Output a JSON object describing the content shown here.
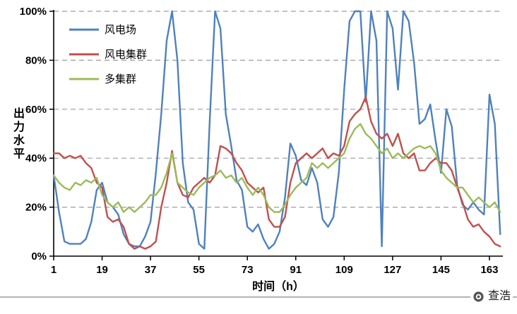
{
  "colors": {
    "background": "#ffffff",
    "axis": "#000000",
    "gridline": "#9e9e9e",
    "divider": "#b3b3b3",
    "wind_farm_blue": "#4F81BD",
    "wind_cluster_red": "#C0504D",
    "multi_cluster_green": "#9BBB59"
  },
  "watermark": {
    "text": "查浩"
  },
  "chart_data": {
    "type": "line",
    "title": "",
    "xlabel": "时间（h）",
    "ylabel": "出力水平",
    "xlim": [
      1,
      168
    ],
    "ylim": [
      0,
      100
    ],
    "xticks": [
      1,
      19,
      37,
      55,
      73,
      91,
      109,
      127,
      145,
      163
    ],
    "yticks": [
      0,
      20,
      40,
      60,
      80,
      100
    ],
    "ytick_labels": [
      "0%",
      "20%",
      "40%",
      "60%",
      "80%",
      "100%"
    ],
    "grid": "horizontal-dashed",
    "legend_position": "top-left-inside",
    "x": [
      1,
      3,
      5,
      7,
      9,
      11,
      13,
      15,
      17,
      19,
      21,
      23,
      25,
      27,
      29,
      31,
      33,
      35,
      37,
      39,
      41,
      43,
      45,
      47,
      49,
      51,
      53,
      55,
      57,
      59,
      61,
      63,
      65,
      67,
      69,
      71,
      73,
      75,
      77,
      79,
      81,
      83,
      85,
      87,
      89,
      91,
      93,
      95,
      97,
      99,
      101,
      103,
      105,
      107,
      109,
      111,
      113,
      115,
      117,
      119,
      121,
      123,
      125,
      127,
      129,
      131,
      133,
      135,
      137,
      139,
      141,
      143,
      145,
      147,
      149,
      151,
      153,
      155,
      157,
      159,
      161,
      163,
      165,
      167
    ],
    "series": [
      {
        "name": "风电场",
        "color": "#4F81BD",
        "values": [
          33,
          18,
          6,
          5,
          5,
          5,
          7,
          14,
          27,
          30,
          22,
          20,
          17,
          9,
          5,
          4,
          4,
          8,
          14,
          34,
          58,
          88,
          100,
          80,
          38,
          22,
          19,
          5,
          3,
          55,
          100,
          93,
          58,
          45,
          31,
          27,
          12,
          10,
          13,
          7,
          3,
          5,
          10,
          24,
          46,
          41,
          31,
          29,
          36,
          30,
          15,
          12,
          16,
          34,
          68,
          96,
          100,
          100,
          63,
          100,
          88,
          4,
          100,
          93,
          68,
          100,
          96,
          79,
          54,
          56,
          62,
          47,
          34,
          60,
          53,
          29,
          21,
          19,
          22,
          19,
          17,
          66,
          54,
          9
        ]
      },
      {
        "name": "风电集群",
        "color": "#C0504D",
        "values": [
          42,
          42,
          40,
          41,
          40,
          41,
          38,
          36,
          30,
          28,
          16,
          14,
          15,
          12,
          5,
          3,
          4,
          3,
          4,
          6,
          20,
          30,
          43,
          30,
          25,
          24,
          28,
          30,
          32,
          30,
          33,
          45,
          44,
          42,
          38,
          35,
          30,
          28,
          26,
          28,
          15,
          12,
          12,
          16,
          30,
          38,
          40,
          42,
          40,
          42,
          44,
          40,
          42,
          41,
          45,
          55,
          58,
          60,
          65,
          55,
          50,
          48,
          50,
          45,
          50,
          42,
          40,
          42,
          35,
          35,
          38,
          40,
          38,
          38,
          35,
          28,
          22,
          15,
          12,
          13,
          10,
          8,
          5,
          4
        ]
      },
      {
        "name": "多集群",
        "color": "#9BBB59",
        "values": [
          33,
          30,
          28,
          27,
          30,
          29,
          31,
          30,
          32,
          25,
          22,
          20,
          22,
          18,
          20,
          18,
          20,
          22,
          25,
          25,
          28,
          34,
          42,
          30,
          28,
          26,
          25,
          28,
          30,
          32,
          33,
          35,
          32,
          33,
          30,
          32,
          28,
          25,
          28,
          25,
          20,
          18,
          18,
          21,
          25,
          28,
          30,
          32,
          38,
          36,
          38,
          36,
          38,
          40,
          42,
          48,
          52,
          54,
          50,
          48,
          45,
          42,
          44,
          40,
          42,
          40,
          42,
          44,
          45,
          44,
          45,
          42,
          35,
          32,
          30,
          28,
          28,
          25,
          22,
          24,
          22,
          20,
          22,
          18
        ]
      }
    ]
  }
}
